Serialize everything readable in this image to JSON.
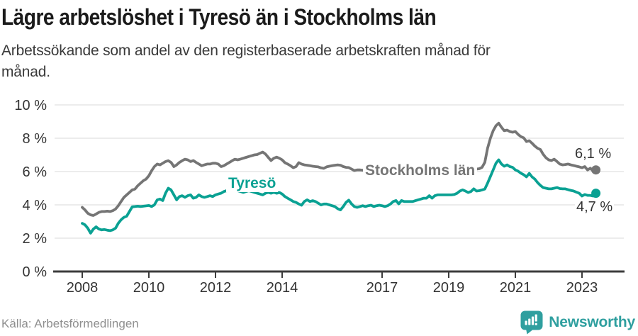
{
  "title": "Lägre arbetslöshet i Tyresö än i Stockholms län",
  "subtitle_lines": [
    "Arbetssökande som andel av den registerbaserade arbetskraften månad för",
    "månad."
  ],
  "source": "Källa: Arbetsförmedlingen",
  "brand": {
    "name": "Newsworthy",
    "color": "#2f9f9f"
  },
  "chart_data": {
    "type": "line",
    "title": "Lägre arbetslöshet i Tyresö än i Stockholms län",
    "xlabel": "",
    "ylabel": "Arbetssökande som andel av den registerbaserade arbetskraften",
    "x_unit": "month",
    "x_start": "2008-01",
    "x_end": "2023-06",
    "x_ticks": [
      2008,
      2010,
      2012,
      2014,
      2017,
      2019,
      2021,
      2023
    ],
    "y_ticks": [
      0,
      2,
      4,
      6,
      8,
      10
    ],
    "y_tick_suffix": " %",
    "ylim": [
      0,
      10
    ],
    "grid": true,
    "legend": "inline-labels",
    "style": {
      "grid_color": "#d9d9d9",
      "axis_color": "#3c3c3c",
      "axis_text_color": "#333333",
      "end_label_color": "#333333"
    },
    "series": [
      {
        "id": "stockholms-lan",
        "name": "Stockholms län",
        "color": "#757575",
        "end_label": "6,1 %",
        "last_value": 6.1,
        "values": [
          3.85,
          3.7,
          3.5,
          3.4,
          3.36,
          3.45,
          3.55,
          3.6,
          3.6,
          3.62,
          3.6,
          3.65,
          3.75,
          3.95,
          4.2,
          4.45,
          4.6,
          4.75,
          4.9,
          4.95,
          5.15,
          5.3,
          5.45,
          5.55,
          5.75,
          6.05,
          6.3,
          6.45,
          6.4,
          6.5,
          6.6,
          6.65,
          6.55,
          6.3,
          6.4,
          6.55,
          6.65,
          6.74,
          6.7,
          6.6,
          6.66,
          6.55,
          6.45,
          6.35,
          6.4,
          6.45,
          6.45,
          6.5,
          6.5,
          6.45,
          6.3,
          6.35,
          6.45,
          6.55,
          6.65,
          6.74,
          6.7,
          6.75,
          6.8,
          6.85,
          6.9,
          6.95,
          7.0,
          7.02,
          7.1,
          7.17,
          7.05,
          6.85,
          6.66,
          6.8,
          6.87,
          6.8,
          6.7,
          6.53,
          6.45,
          6.35,
          6.23,
          6.3,
          6.53,
          6.45,
          6.4,
          6.38,
          6.35,
          6.32,
          6.3,
          6.28,
          6.22,
          6.19,
          6.28,
          6.32,
          6.35,
          6.38,
          6.4,
          6.38,
          6.3,
          6.25,
          6.24,
          6.15,
          6.06,
          6.1,
          6.1,
          6.08,
          6.05,
          6.05,
          6.0,
          6.0,
          6.0,
          6.0,
          6.0,
          5.98,
          5.95,
          5.95,
          5.95,
          5.95,
          5.95,
          5.95,
          5.95,
          5.95,
          5.92,
          5.9,
          5.9,
          5.9,
          5.88,
          5.88,
          5.88,
          5.9,
          5.9,
          5.9,
          5.92,
          5.95,
          5.95,
          6.0,
          6.0,
          6.0,
          6.05,
          6.05,
          6.1,
          6.1,
          6.1,
          6.13,
          6.13,
          6.15,
          6.15,
          6.17,
          6.25,
          6.55,
          7.4,
          8.0,
          8.45,
          8.75,
          8.9,
          8.66,
          8.45,
          8.49,
          8.4,
          8.36,
          8.4,
          8.23,
          8.1,
          8.02,
          7.8,
          7.85,
          7.7,
          7.53,
          7.4,
          7.32,
          7.04,
          6.83,
          6.7,
          6.66,
          6.74,
          6.6,
          6.45,
          6.4,
          6.42,
          6.45,
          6.4,
          6.36,
          6.32,
          6.28,
          6.23,
          6.3,
          6.1,
          6.2,
          6.02,
          6.1
        ]
      },
      {
        "id": "tyreso",
        "name": "Tyresö",
        "color": "#0aa193",
        "end_label": "4,7 %",
        "last_value": 4.7,
        "values": [
          2.89,
          2.8,
          2.6,
          2.3,
          2.55,
          2.68,
          2.55,
          2.5,
          2.52,
          2.48,
          2.45,
          2.5,
          2.6,
          2.9,
          3.1,
          3.25,
          3.32,
          3.6,
          3.88,
          3.9,
          3.92,
          3.9,
          3.92,
          3.94,
          3.96,
          3.9,
          4.0,
          4.3,
          4.35,
          4.26,
          4.7,
          5.0,
          4.9,
          4.6,
          4.3,
          4.5,
          4.55,
          4.45,
          4.55,
          4.6,
          4.4,
          4.45,
          4.6,
          4.5,
          4.45,
          4.5,
          4.55,
          4.5,
          4.6,
          4.65,
          4.7,
          4.8,
          4.85,
          4.9,
          4.95,
          4.9,
          4.85,
          4.8,
          4.75,
          4.8,
          4.85,
          4.8,
          4.75,
          4.7,
          4.65,
          4.6,
          4.7,
          4.75,
          4.7,
          4.75,
          4.7,
          4.74,
          4.65,
          4.5,
          4.4,
          4.3,
          4.2,
          4.15,
          4.05,
          3.98,
          4.2,
          4.3,
          4.2,
          4.25,
          4.2,
          4.1,
          4.0,
          4.05,
          4.05,
          4.0,
          3.95,
          3.9,
          3.77,
          3.7,
          3.9,
          4.15,
          4.28,
          4.06,
          3.9,
          3.85,
          3.9,
          3.95,
          3.9,
          3.95,
          3.98,
          3.9,
          3.95,
          3.98,
          3.95,
          3.9,
          3.95,
          4.05,
          4.2,
          4.26,
          4.06,
          4.26,
          4.2,
          4.2,
          4.2,
          4.2,
          4.25,
          4.3,
          4.35,
          4.4,
          4.4,
          4.55,
          4.4,
          4.55,
          4.6,
          4.6,
          4.6,
          4.6,
          4.6,
          4.6,
          4.62,
          4.7,
          4.83,
          4.9,
          4.83,
          4.74,
          4.8,
          4.96,
          4.83,
          4.85,
          4.9,
          4.95,
          5.3,
          5.7,
          6.1,
          6.5,
          6.7,
          6.45,
          6.32,
          6.4,
          6.3,
          6.25,
          6.1,
          6.02,
          5.9,
          5.81,
          5.68,
          5.89,
          5.68,
          5.55,
          5.34,
          5.17,
          5.04,
          5.0,
          4.96,
          4.96,
          5.0,
          5.04,
          4.98,
          4.96,
          4.96,
          4.91,
          4.87,
          4.83,
          4.76,
          4.7,
          4.53,
          4.62,
          4.57,
          4.57,
          4.53,
          4.7
        ]
      }
    ]
  }
}
